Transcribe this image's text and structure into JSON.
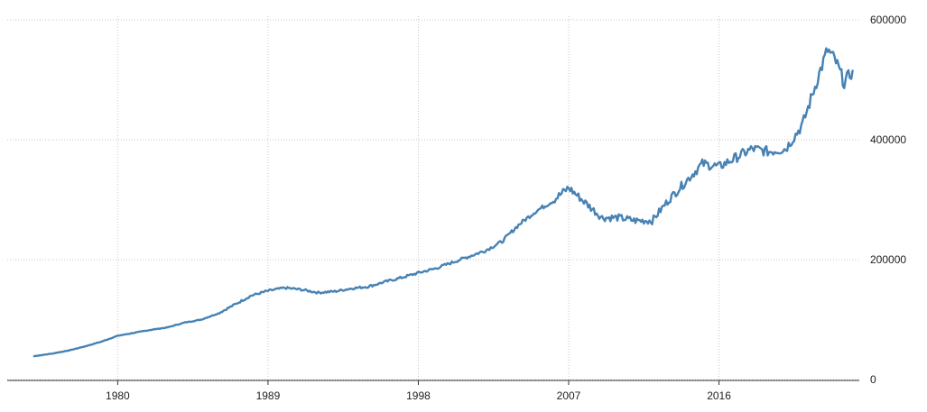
{
  "chart_data": {
    "type": "line",
    "title": "",
    "xlabel": "",
    "ylabel": "",
    "xlim": [
      1974.9,
      2024.4
    ],
    "ylim": [
      0,
      600000
    ],
    "x_ticks": [
      1980,
      1989,
      1998,
      2007,
      2016
    ],
    "x_tick_labels": [
      "1980",
      "1989",
      "1998",
      "2007",
      "2016"
    ],
    "y_ticks": [
      0,
      200000,
      400000,
      600000
    ],
    "y_tick_labels": [
      "0",
      "200000",
      "400000",
      "600000"
    ],
    "grid": true,
    "legend": "none",
    "color": "#4682b4",
    "series": [
      {
        "x": [
          1975,
          1976,
          1977,
          1978,
          1979,
          1980,
          1981,
          1982,
          1983,
          1984,
          1985,
          1986,
          1987,
          1988,
          1989,
          1990,
          1991,
          1992,
          1993,
          1994,
          1995,
          1996,
          1997,
          1998,
          1999,
          2000,
          2001,
          2002,
          2003,
          2004,
          2005,
          2006,
          2007,
          2008,
          2009,
          2010,
          2011,
          2012,
          2013,
          2014,
          2015,
          2016,
          2017,
          2018,
          2019,
          2020,
          2021,
          2022,
          2022.5,
          2023,
          2023.5,
          2024
        ],
        "values": [
          39000,
          43000,
          48000,
          55000,
          63000,
          73000,
          78000,
          83000,
          87000,
          95000,
          100000,
          110000,
          125000,
          140000,
          148000,
          153000,
          150000,
          145000,
          147000,
          152000,
          155000,
          163000,
          170000,
          178000,
          185000,
          195000,
          205000,
          215000,
          230000,
          258000,
          280000,
          297000,
          320000,
          295000,
          270000,
          270000,
          265000,
          265000,
          300000,
          330000,
          360000,
          355000,
          370000,
          385000,
          380000,
          385000,
          425000,
          510000,
          550000,
          530000,
          495000,
          515000
        ]
      }
    ]
  }
}
